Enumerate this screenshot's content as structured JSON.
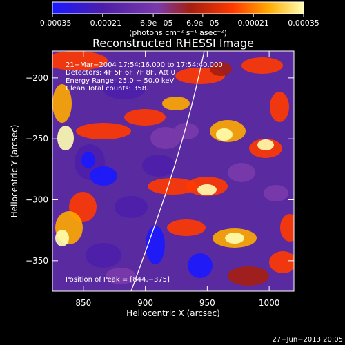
{
  "chart_data": {
    "type": "heatmap",
    "title": "Reconstructed RHESSI Image",
    "xlabel": "Heliocentric X (arcsec)",
    "ylabel": "Heliocentric Y (arcsec)",
    "xlim": [
      825,
      1020
    ],
    "ylim": [
      -375,
      -178
    ],
    "x_ticks": [
      850,
      900,
      950,
      1000
    ],
    "y_ticks": [
      -350,
      -300,
      -250,
      -200
    ],
    "x_tick_labels": [
      "850",
      "900",
      "950",
      "1000"
    ],
    "y_tick_labels": [
      "−350",
      "−300",
      "−250",
      "−200"
    ],
    "colorbar": {
      "ticks": [
        -0.00035,
        -0.00021,
        -6.9e-05,
        6.9e-05,
        0.00021,
        0.00035
      ],
      "tick_labels": [
        "−0.00035",
        "−0.00021",
        "−6.9e−05",
        "6.9e−05",
        "0.00021",
        "0.00035"
      ],
      "range": [
        -0.00035,
        0.00035
      ],
      "unit_label": "(photons cm⁻² s⁻¹ asec⁻²)",
      "colors": [
        "#1a1aff",
        "#4c1ea8",
        "#7a3aaa",
        "#a51e10",
        "#ff3a00",
        "#ffaa00",
        "#ffffb0"
      ]
    },
    "annotations": [
      "21−Mar−2004 17:54:16.000 to 17:54:40.000",
      "Detectors: 4F 5F 6F 7F 8F, Att 0",
      "Energy Range: 25.0 − 50.0 keV",
      "Clean    Total counts: 358.",
      "Position of Peak = [844,−375]"
    ],
    "peak": {
      "x": 844,
      "y": -375
    },
    "footer_date": "27−Jun−2013 20:05"
  }
}
